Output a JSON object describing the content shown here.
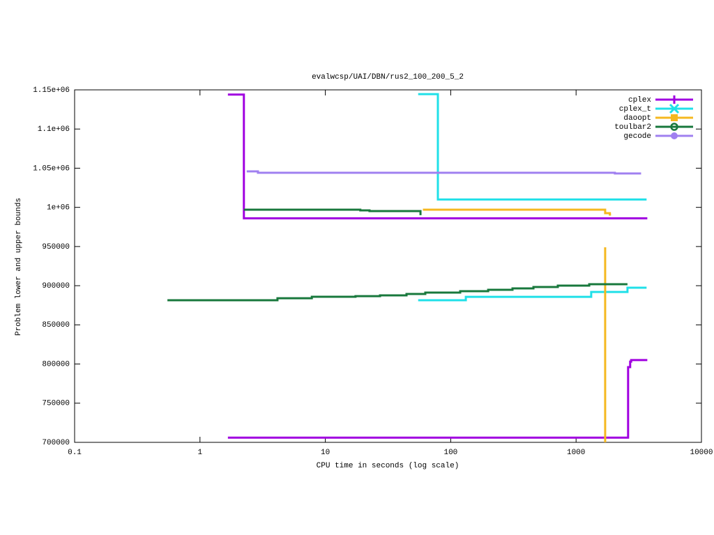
{
  "chart_data": {
    "type": "line",
    "title": "evalwcsp/UAI/DBN/rus2_100_200_5_2",
    "xlabel": "CPU time in seconds (log scale)",
    "ylabel": "Problem lower and upper bounds",
    "xscale": "log",
    "step": true,
    "legend": "upper-right",
    "xlim": [
      0.1,
      10000
    ],
    "xticks": [
      0.1,
      1,
      10,
      100,
      1000,
      10000
    ],
    "ylim": [
      700000,
      1150000
    ],
    "yticks": [
      700000,
      750000,
      800000,
      850000,
      900000,
      950000,
      {
        "value": 1000000,
        "label": "1e+06"
      },
      {
        "value": 1050000,
        "label": "1.05e+06"
      },
      {
        "value": 1100000,
        "label": "1.1e+06"
      },
      {
        "value": 1150000,
        "label": "1.15e+06"
      }
    ],
    "series": [
      {
        "name": "cplex",
        "color": "#a000e0",
        "marker": "plus",
        "x": [
          1.67,
          2.24,
          3700,
          null,
          1.67,
          2600,
          2700,
          2750,
          3700
        ],
        "values": [
          1144000,
          986000,
          986000,
          null,
          706000,
          796000,
          803000,
          805000,
          805000
        ]
      },
      {
        "name": "cplex_t",
        "color": "#20e0e8",
        "marker": "cross",
        "x": [
          55,
          79,
          3650,
          null,
          55,
          132,
          1320,
          2570,
          3650
        ],
        "values": [
          1144600,
          1010000,
          1010000,
          null,
          881400,
          885800,
          892000,
          897400,
          897400
        ]
      },
      {
        "name": "daoopt",
        "color": "#f5b820",
        "marker": "square",
        "x": [
          60,
          1706,
          1860,
          1900,
          null,
          1706,
          1706
        ],
        "values": [
          997000,
          992600,
          990800,
          990800,
          null,
          949000,
          700000
        ]
      },
      {
        "name": "toulbar2",
        "color": "#18783c",
        "marker": "circle",
        "x": [
          2.24,
          19,
          22.5,
          57.4,
          57.4,
          null,
          0.55,
          4.15,
          7.8,
          17.4,
          27.3,
          44.4,
          62.7,
          119,
          199,
          311,
          457,
          715,
          1273,
          2570
        ],
        "values": [
          997000,
          996200,
          995300,
          995300,
          990000,
          null,
          881400,
          884000,
          885900,
          886700,
          887600,
          889400,
          891200,
          893000,
          894800,
          896500,
          898300,
          900100,
          901900,
          901900
        ]
      },
      {
        "name": "gecode",
        "color": "#a080f0",
        "marker": "dot",
        "x": [
          2.36,
          2.9,
          2040,
          3300
        ],
        "values": [
          1046000,
          1044200,
          1043300,
          1043300
        ]
      }
    ]
  }
}
